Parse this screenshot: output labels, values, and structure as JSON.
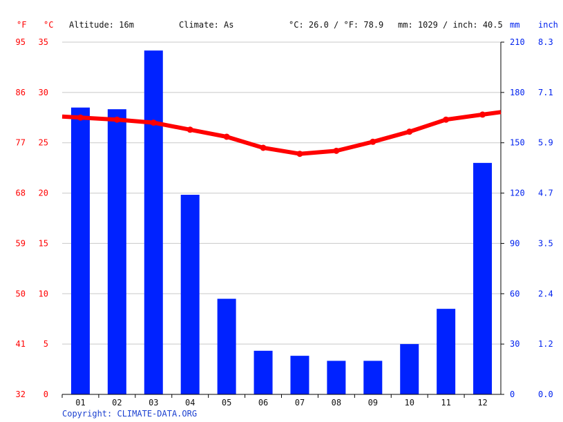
{
  "header": {
    "altitude": "Altitude: 16m",
    "climate": "Climate: As",
    "temperature": "°C: 26.0 / °F: 78.9",
    "precipitation": "mm: 1029 / inch: 40.5"
  },
  "units": {
    "fahrenheit": "°F",
    "celsius": "°C",
    "mm": "mm",
    "inch": "inch"
  },
  "copyright": "Copyright: CLIMATE-DATA.ORG",
  "colors": {
    "temperature": "#ff0000",
    "precipitation": "#0022ff",
    "grid": "#c8c8c8",
    "left_axis_text": "#ff0000",
    "right_axis_text": "#0022ee"
  },
  "chart_data": {
    "type": "bar",
    "categories": [
      "01",
      "02",
      "03",
      "04",
      "05",
      "06",
      "07",
      "08",
      "09",
      "10",
      "11",
      "12"
    ],
    "series": [
      {
        "type": "bar",
        "axis": "right",
        "values": [
          171,
          170,
          205,
          119,
          57,
          26,
          23,
          20,
          20,
          30,
          51,
          138
        ]
      },
      {
        "type": "line",
        "axis": "left",
        "values": [
          27.5,
          27.3,
          27.0,
          26.3,
          25.6,
          24.5,
          23.9,
          24.2,
          25.1,
          26.1,
          27.3,
          27.8
        ]
      }
    ],
    "left_axis": {
      "celsius_ticks": [
        "0",
        "5",
        "10",
        "15",
        "20",
        "25",
        "30",
        "35"
      ],
      "fahrenheit_ticks": [
        "32",
        "41",
        "50",
        "59",
        "68",
        "77",
        "86",
        "95"
      ],
      "ylim": [
        0,
        35
      ]
    },
    "right_axis": {
      "mm_ticks": [
        "0",
        "30",
        "60",
        "90",
        "120",
        "150",
        "180",
        "210"
      ],
      "inch_ticks": [
        "0.0",
        "1.2",
        "2.4",
        "3.5",
        "4.7",
        "5.9",
        "7.1",
        "8.3"
      ],
      "ylim": [
        0,
        210
      ]
    },
    "grid": true,
    "legend": false
  }
}
